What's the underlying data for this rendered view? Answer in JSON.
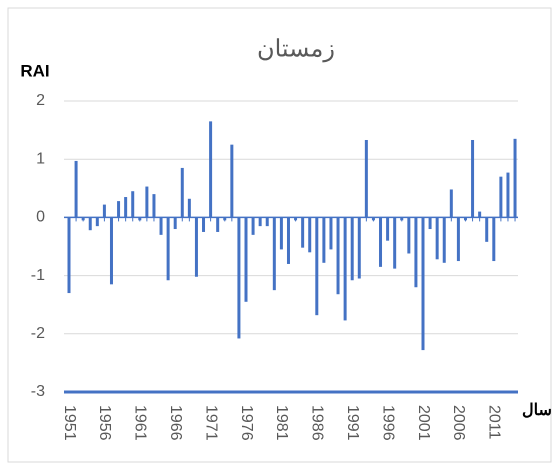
{
  "chart_data": {
    "type": "bar",
    "title": "زمستان",
    "y_label": "RAI",
    "x_label": "سال",
    "categories": [
      "1951",
      null,
      null,
      null,
      null,
      "1956",
      null,
      null,
      null,
      null,
      "1961",
      null,
      null,
      null,
      null,
      "1966",
      null,
      null,
      null,
      null,
      "1971",
      null,
      null,
      null,
      null,
      "1976",
      null,
      null,
      null,
      null,
      "1981",
      null,
      null,
      null,
      null,
      "1986",
      null,
      null,
      null,
      null,
      "1991",
      null,
      null,
      null,
      null,
      "1996",
      null,
      null,
      null,
      null,
      "2001",
      null,
      null,
      null,
      null,
      "2006",
      null,
      null,
      null,
      null,
      "2011",
      null,
      null,
      null
    ],
    "values": [
      -1.3,
      0.97,
      -0.05,
      -0.22,
      -0.15,
      0.22,
      -1.15,
      0.28,
      0.35,
      0.45,
      -0.05,
      0.53,
      0.4,
      -0.3,
      -1.08,
      -0.2,
      0.85,
      0.32,
      -1.02,
      -0.25,
      1.65,
      -0.25,
      -0.05,
      1.25,
      -2.08,
      -1.45,
      -0.3,
      -0.15,
      -0.15,
      -1.25,
      -0.55,
      -0.8,
      -0.05,
      -0.52,
      -0.6,
      -1.68,
      -0.78,
      -0.55,
      -1.32,
      -1.77,
      -1.08,
      -1.05,
      1.33,
      -0.05,
      -0.85,
      -0.4,
      -0.88,
      -0.05,
      -0.62,
      -1.2,
      -2.28,
      -0.2,
      -0.72,
      -0.78,
      0.48,
      -0.75,
      -0.05,
      1.33,
      0.1,
      -0.42,
      -0.75,
      0.7,
      0.77,
      1.35
    ],
    "color": "#4472c4",
    "ylim": [
      -3,
      2
    ],
    "yticks": [
      -3,
      -2,
      -1,
      0,
      1,
      2
    ],
    "grid": true
  }
}
